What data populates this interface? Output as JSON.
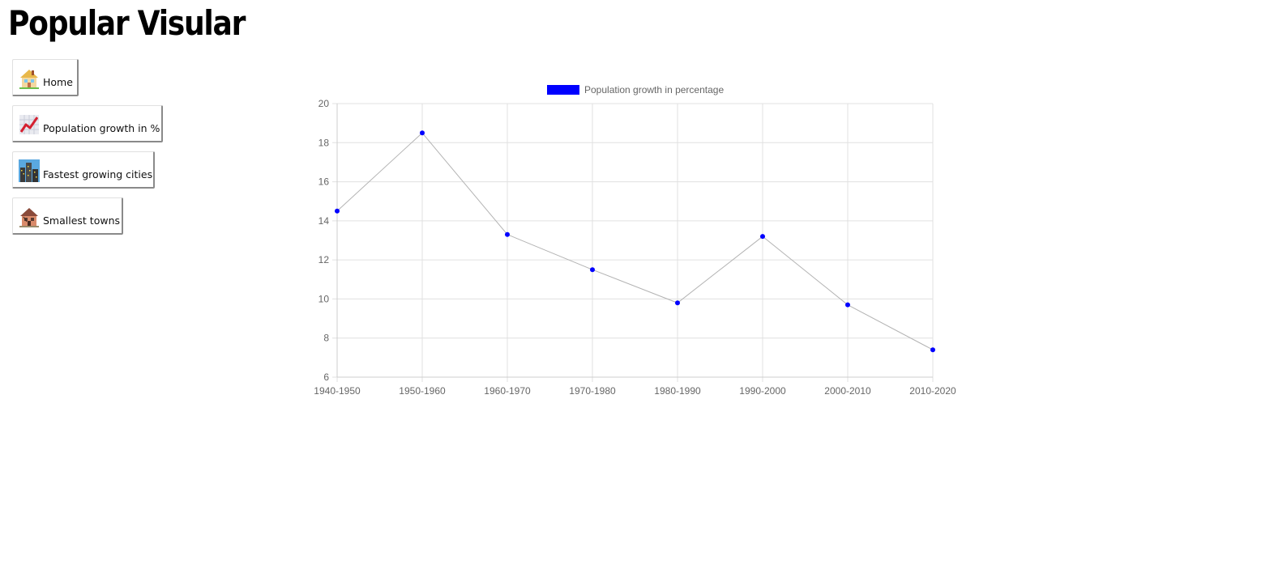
{
  "page": {
    "title": "Popular Visular"
  },
  "nav": {
    "items": [
      {
        "label": "Home",
        "icon": "house-icon"
      },
      {
        "label": "Population growth in %",
        "icon": "chart-increasing-icon"
      },
      {
        "label": "Fastest growing cities",
        "icon": "cityscape-icon"
      },
      {
        "label": "Smallest towns",
        "icon": "derelict-house-icon"
      }
    ]
  },
  "chart_data": {
    "type": "line",
    "categories": [
      "1940-1950",
      "1950-1960",
      "1960-1970",
      "1970-1980",
      "1980-1990",
      "1990-2000",
      "2000-2010",
      "2010-2020"
    ],
    "series": [
      {
        "name": "Population growth in percentage",
        "values": [
          14.5,
          18.5,
          13.3,
          11.5,
          9.8,
          13.2,
          9.7,
          7.4
        ],
        "color": "#0000ff",
        "line_color": "#b3b3b3"
      }
    ],
    "ylim": [
      6,
      20
    ],
    "yticks": [
      6,
      8,
      10,
      12,
      14,
      16,
      18,
      20
    ],
    "grid": true,
    "legend": "top"
  }
}
